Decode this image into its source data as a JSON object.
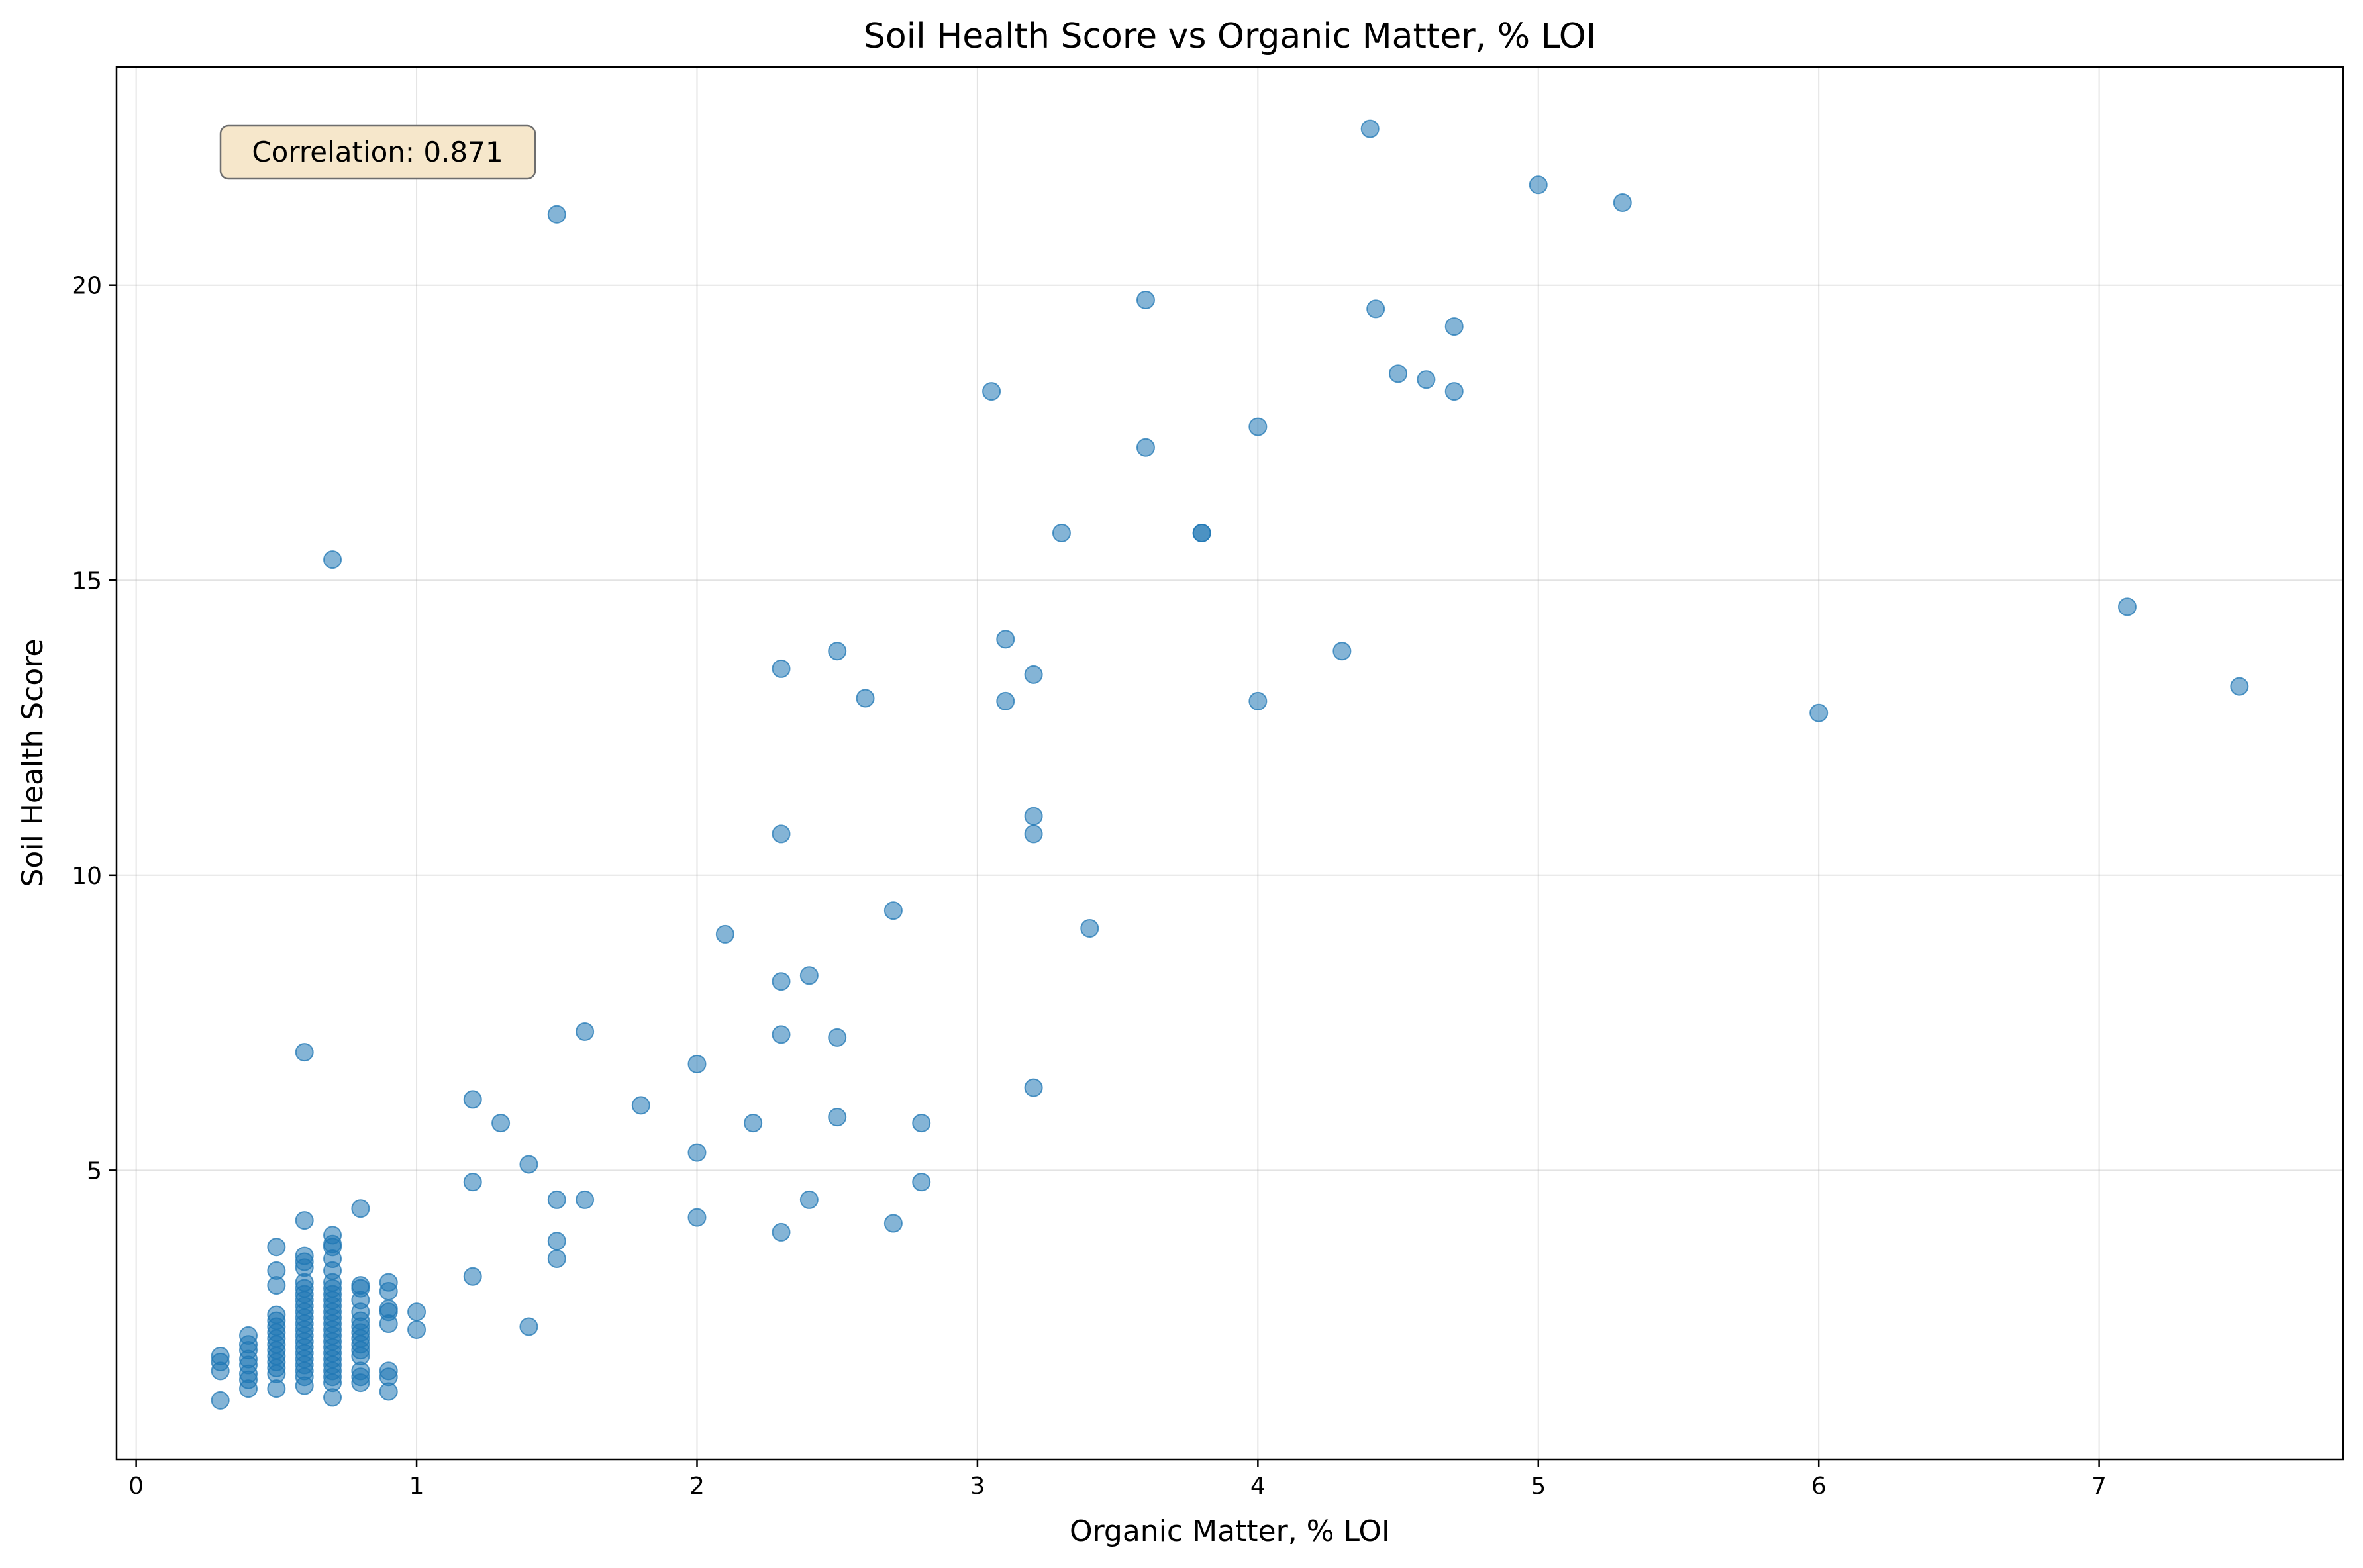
{
  "chart_data": {
    "type": "scatter",
    "title": "Soil Health Score vs Organic Matter, % LOI",
    "xlabel": "Organic Matter, % LOI",
    "ylabel": "Soil Health Score",
    "xlim": [
      -0.07,
      7.87
    ],
    "ylim": [
      0.1,
      23.7
    ],
    "xticks": [
      0,
      1,
      2,
      3,
      4,
      5,
      6,
      7
    ],
    "yticks": [
      5,
      10,
      15,
      20
    ],
    "grid": true,
    "point_color": "#1f77b4",
    "annotation": "Correlation: 0.871",
    "annotation_placement": "top-left",
    "points": [
      [
        0.3,
        1.1
      ],
      [
        0.3,
        1.6
      ],
      [
        0.3,
        1.75
      ],
      [
        0.3,
        1.85
      ],
      [
        0.4,
        1.3
      ],
      [
        0.4,
        1.45
      ],
      [
        0.4,
        1.55
      ],
      [
        0.4,
        1.7
      ],
      [
        0.4,
        1.8
      ],
      [
        0.4,
        1.95
      ],
      [
        0.4,
        2.05
      ],
      [
        0.4,
        2.2
      ],
      [
        0.5,
        1.3
      ],
      [
        0.5,
        1.55
      ],
      [
        0.5,
        1.65
      ],
      [
        0.5,
        1.75
      ],
      [
        0.5,
        1.85
      ],
      [
        0.5,
        1.95
      ],
      [
        0.5,
        2.05
      ],
      [
        0.5,
        2.15
      ],
      [
        0.5,
        2.25
      ],
      [
        0.5,
        2.35
      ],
      [
        0.5,
        2.45
      ],
      [
        0.5,
        2.55
      ],
      [
        0.5,
        3.05
      ],
      [
        0.5,
        3.3
      ],
      [
        0.5,
        3.7
      ],
      [
        0.6,
        1.35
      ],
      [
        0.6,
        1.5
      ],
      [
        0.6,
        1.6
      ],
      [
        0.6,
        1.7
      ],
      [
        0.6,
        1.8
      ],
      [
        0.6,
        1.9
      ],
      [
        0.6,
        2.0
      ],
      [
        0.6,
        2.1
      ],
      [
        0.6,
        2.2
      ],
      [
        0.6,
        2.3
      ],
      [
        0.6,
        2.4
      ],
      [
        0.6,
        2.5
      ],
      [
        0.6,
        2.6
      ],
      [
        0.6,
        2.7
      ],
      [
        0.6,
        2.8
      ],
      [
        0.6,
        2.9
      ],
      [
        0.6,
        3.0
      ],
      [
        0.6,
        3.1
      ],
      [
        0.6,
        3.35
      ],
      [
        0.6,
        3.45
      ],
      [
        0.6,
        3.55
      ],
      [
        0.6,
        4.15
      ],
      [
        0.6,
        7.0
      ],
      [
        0.7,
        1.15
      ],
      [
        0.7,
        1.4
      ],
      [
        0.7,
        1.5
      ],
      [
        0.7,
        1.6
      ],
      [
        0.7,
        1.7
      ],
      [
        0.7,
        1.8
      ],
      [
        0.7,
        1.9
      ],
      [
        0.7,
        2.0
      ],
      [
        0.7,
        2.1
      ],
      [
        0.7,
        2.2
      ],
      [
        0.7,
        2.3
      ],
      [
        0.7,
        2.4
      ],
      [
        0.7,
        2.5
      ],
      [
        0.7,
        2.6
      ],
      [
        0.7,
        2.7
      ],
      [
        0.7,
        2.8
      ],
      [
        0.7,
        2.9
      ],
      [
        0.7,
        3.0
      ],
      [
        0.7,
        3.1
      ],
      [
        0.7,
        3.3
      ],
      [
        0.7,
        3.5
      ],
      [
        0.7,
        3.7
      ],
      [
        0.7,
        3.75
      ],
      [
        0.7,
        3.9
      ],
      [
        0.7,
        15.35
      ],
      [
        0.8,
        1.4
      ],
      [
        0.8,
        1.5
      ],
      [
        0.8,
        1.6
      ],
      [
        0.8,
        1.85
      ],
      [
        0.8,
        1.95
      ],
      [
        0.8,
        2.05
      ],
      [
        0.8,
        2.15
      ],
      [
        0.8,
        2.25
      ],
      [
        0.8,
        2.35
      ],
      [
        0.8,
        2.45
      ],
      [
        0.8,
        2.6
      ],
      [
        0.8,
        2.8
      ],
      [
        0.8,
        3.0
      ],
      [
        0.8,
        3.05
      ],
      [
        0.8,
        4.35
      ],
      [
        0.9,
        1.25
      ],
      [
        0.9,
        1.5
      ],
      [
        0.9,
        1.6
      ],
      [
        0.9,
        2.4
      ],
      [
        0.9,
        2.6
      ],
      [
        0.9,
        2.65
      ],
      [
        0.9,
        2.95
      ],
      [
        0.9,
        3.1
      ],
      [
        1.0,
        2.3
      ],
      [
        1.0,
        2.6
      ],
      [
        1.2,
        3.2
      ],
      [
        1.2,
        4.8
      ],
      [
        1.2,
        6.2
      ],
      [
        1.3,
        5.8
      ],
      [
        1.4,
        2.35
      ],
      [
        1.4,
        5.1
      ],
      [
        1.5,
        3.5
      ],
      [
        1.5,
        3.8
      ],
      [
        1.5,
        4.5
      ],
      [
        1.5,
        21.2
      ],
      [
        1.6,
        4.5
      ],
      [
        1.6,
        7.35
      ],
      [
        1.8,
        6.1
      ],
      [
        2.0,
        4.2
      ],
      [
        2.0,
        5.3
      ],
      [
        2.0,
        6.8
      ],
      [
        2.1,
        9.0
      ],
      [
        2.2,
        5.8
      ],
      [
        2.3,
        3.95
      ],
      [
        2.3,
        7.3
      ],
      [
        2.3,
        8.2
      ],
      [
        2.3,
        10.7
      ],
      [
        2.3,
        13.5
      ],
      [
        2.4,
        4.5
      ],
      [
        2.4,
        8.3
      ],
      [
        2.5,
        5.9
      ],
      [
        2.5,
        7.25
      ],
      [
        2.5,
        13.8
      ],
      [
        2.6,
        13.0
      ],
      [
        2.7,
        4.1
      ],
      [
        2.7,
        9.4
      ],
      [
        2.8,
        4.8
      ],
      [
        2.8,
        5.8
      ],
      [
        3.05,
        18.2
      ],
      [
        3.1,
        12.95
      ],
      [
        3.1,
        14.0
      ],
      [
        3.2,
        6.4
      ],
      [
        3.2,
        10.7
      ],
      [
        3.2,
        11.0
      ],
      [
        3.2,
        13.4
      ],
      [
        3.3,
        15.8
      ],
      [
        3.4,
        9.1
      ],
      [
        3.6,
        17.25
      ],
      [
        3.6,
        19.75
      ],
      [
        3.8,
        15.8
      ],
      [
        3.8,
        15.8
      ],
      [
        4.0,
        12.95
      ],
      [
        4.0,
        17.6
      ],
      [
        4.3,
        13.8
      ],
      [
        4.4,
        22.65
      ],
      [
        4.42,
        19.6
      ],
      [
        4.5,
        18.5
      ],
      [
        4.6,
        18.4
      ],
      [
        4.7,
        18.2
      ],
      [
        4.7,
        19.3
      ],
      [
        5.0,
        21.7
      ],
      [
        5.3,
        21.4
      ],
      [
        6.0,
        12.75
      ],
      [
        7.1,
        14.55
      ],
      [
        7.5,
        13.2
      ]
    ]
  }
}
